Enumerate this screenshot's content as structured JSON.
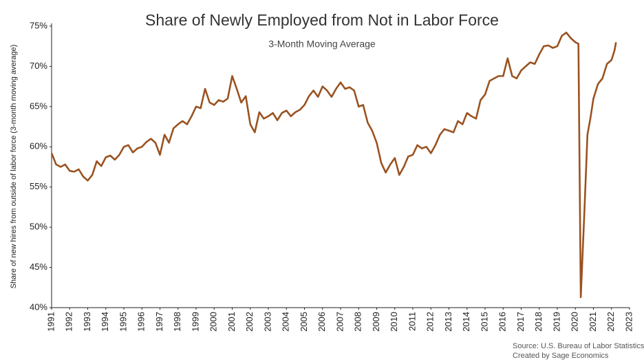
{
  "chart_data": {
    "type": "line",
    "title": "Share of Newly Employed from Not in Labor Force",
    "subtitle": "3-Month Moving Average",
    "y_label": "Share of new hires from outside of labor force (3-month moving average)",
    "source": "Source: U.S. Bureau of Labor Statistics",
    "credit": "Created by Sage Economics",
    "color": "#9a5220",
    "x": [
      1991,
      1991.25,
      1991.5,
      1991.75,
      1992,
      1992.25,
      1992.5,
      1992.75,
      1993,
      1993.25,
      1993.5,
      1993.75,
      1994,
      1994.25,
      1994.5,
      1994.75,
      1995,
      1995.25,
      1995.5,
      1995.75,
      1996,
      1996.25,
      1996.5,
      1996.75,
      1997,
      1997.25,
      1997.5,
      1997.75,
      1998,
      1998.25,
      1998.5,
      1998.75,
      1999,
      1999.25,
      1999.5,
      1999.75,
      2000,
      2000.25,
      2000.5,
      2000.75,
      2001,
      2001.25,
      2001.5,
      2001.75,
      2002,
      2002.25,
      2002.5,
      2002.75,
      2003,
      2003.25,
      2003.5,
      2003.75,
      2004,
      2004.25,
      2004.5,
      2004.75,
      2005,
      2005.25,
      2005.5,
      2005.75,
      2006,
      2006.25,
      2006.5,
      2006.75,
      2007,
      2007.25,
      2007.5,
      2007.75,
      2008,
      2008.25,
      2008.5,
      2008.75,
      2009,
      2009.25,
      2009.5,
      2009.75,
      2010,
      2010.25,
      2010.5,
      2010.75,
      2011,
      2011.25,
      2011.5,
      2011.75,
      2012,
      2012.25,
      2012.5,
      2012.75,
      2013,
      2013.25,
      2013.5,
      2013.75,
      2014,
      2014.25,
      2014.5,
      2014.75,
      2015,
      2015.25,
      2015.5,
      2015.75,
      2016,
      2016.25,
      2016.5,
      2016.75,
      2017,
      2017.25,
      2017.5,
      2017.75,
      2018,
      2018.25,
      2018.5,
      2018.75,
      2019,
      2019.25,
      2019.5,
      2019.75,
      2020,
      2020.17,
      2020.3,
      2020.5,
      2020.67,
      2020.83,
      2021,
      2021.25,
      2021.5,
      2021.75,
      2022,
      2022.17,
      2022.25
    ],
    "values": [
      59.2,
      57.8,
      57.5,
      57.8,
      57.0,
      56.9,
      57.2,
      56.3,
      55.8,
      56.5,
      58.2,
      57.6,
      58.7,
      58.9,
      58.4,
      59.0,
      60.0,
      60.2,
      59.3,
      59.8,
      60.0,
      60.6,
      61.0,
      60.5,
      59.0,
      61.5,
      60.5,
      62.3,
      62.8,
      63.2,
      62.8,
      63.8,
      65.0,
      64.8,
      67.2,
      65.5,
      65.2,
      65.8,
      65.6,
      66.0,
      68.8,
      67.2,
      65.5,
      66.3,
      62.8,
      61.8,
      64.3,
      63.5,
      63.8,
      64.2,
      63.3,
      64.2,
      64.5,
      63.8,
      64.3,
      64.6,
      65.2,
      66.3,
      67.0,
      66.2,
      67.5,
      67.0,
      66.2,
      67.2,
      68.0,
      67.2,
      67.4,
      67.0,
      65.0,
      65.2,
      63.0,
      62.0,
      60.5,
      58.0,
      56.8,
      57.8,
      58.6,
      56.5,
      57.5,
      58.8,
      59.0,
      60.2,
      59.8,
      60.0,
      59.2,
      60.2,
      61.5,
      62.2,
      62.0,
      61.8,
      63.2,
      62.8,
      64.2,
      63.8,
      63.5,
      65.8,
      66.5,
      68.2,
      68.5,
      68.8,
      68.8,
      71.0,
      68.8,
      68.5,
      69.5,
      70.0,
      70.5,
      70.3,
      71.5,
      72.5,
      72.6,
      72.3,
      72.5,
      73.8,
      74.2,
      73.5,
      73.0,
      72.8,
      41.3,
      52.0,
      61.5,
      63.5,
      66.0,
      67.8,
      68.5,
      70.3,
      70.8,
      72.0,
      73.0
    ],
    "xlim": [
      1991,
      2023
    ],
    "xticks": [
      1991,
      1992,
      1993,
      1994,
      1995,
      1996,
      1997,
      1998,
      1999,
      2000,
      2001,
      2002,
      2003,
      2004,
      2005,
      2006,
      2007,
      2008,
      2009,
      2010,
      2011,
      2012,
      2013,
      2014,
      2015,
      2016,
      2017,
      2018,
      2019,
      2020,
      2021,
      2022,
      2023
    ],
    "ylim": [
      40,
      75
    ],
    "yticks": [
      {
        "value": 40,
        "label": "40%"
      },
      {
        "value": 45,
        "label": "45%"
      },
      {
        "value": 50,
        "label": "50%"
      },
      {
        "value": 55,
        "label": "55%"
      },
      {
        "value": 60,
        "label": "60%"
      },
      {
        "value": 65,
        "label": "65%"
      },
      {
        "value": 70,
        "label": "70%"
      },
      {
        "value": 75,
        "label": "75%"
      }
    ],
    "grid": false
  }
}
